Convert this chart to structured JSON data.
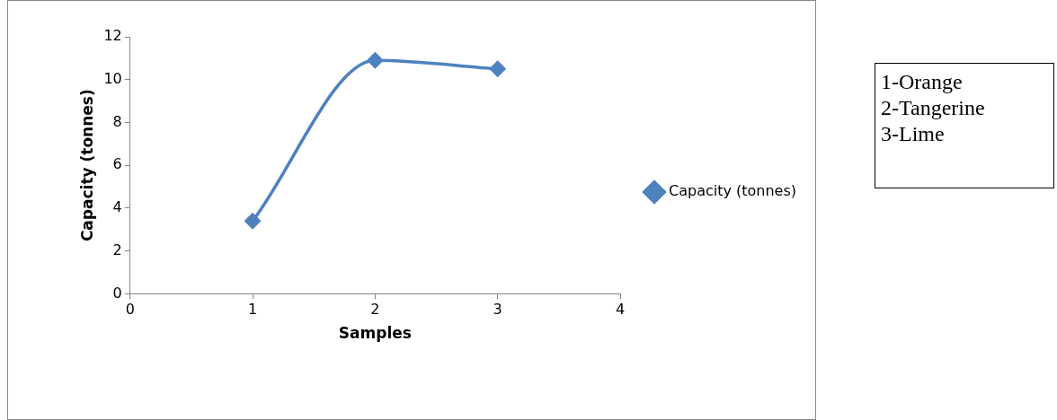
{
  "chart_data": {
    "type": "line",
    "xlabel": "Samples",
    "ylabel": "Capacity (tonnes)",
    "x": [
      1,
      2,
      3
    ],
    "series": [
      {
        "name": "Capacity (tonnes)",
        "color": "#4f81bd",
        "values": [
          3.4,
          10.9,
          10.5
        ]
      }
    ],
    "xlim": [
      0,
      4
    ],
    "xticks": [
      0,
      1,
      2,
      3,
      4
    ],
    "ylim": [
      0,
      12
    ],
    "yticks": [
      0,
      2,
      4,
      6,
      8,
      10,
      12
    ],
    "legend": "right",
    "marker": "diamond",
    "annotations": [
      "1-Orange",
      "2-Tangerine",
      "3-Lime"
    ]
  }
}
